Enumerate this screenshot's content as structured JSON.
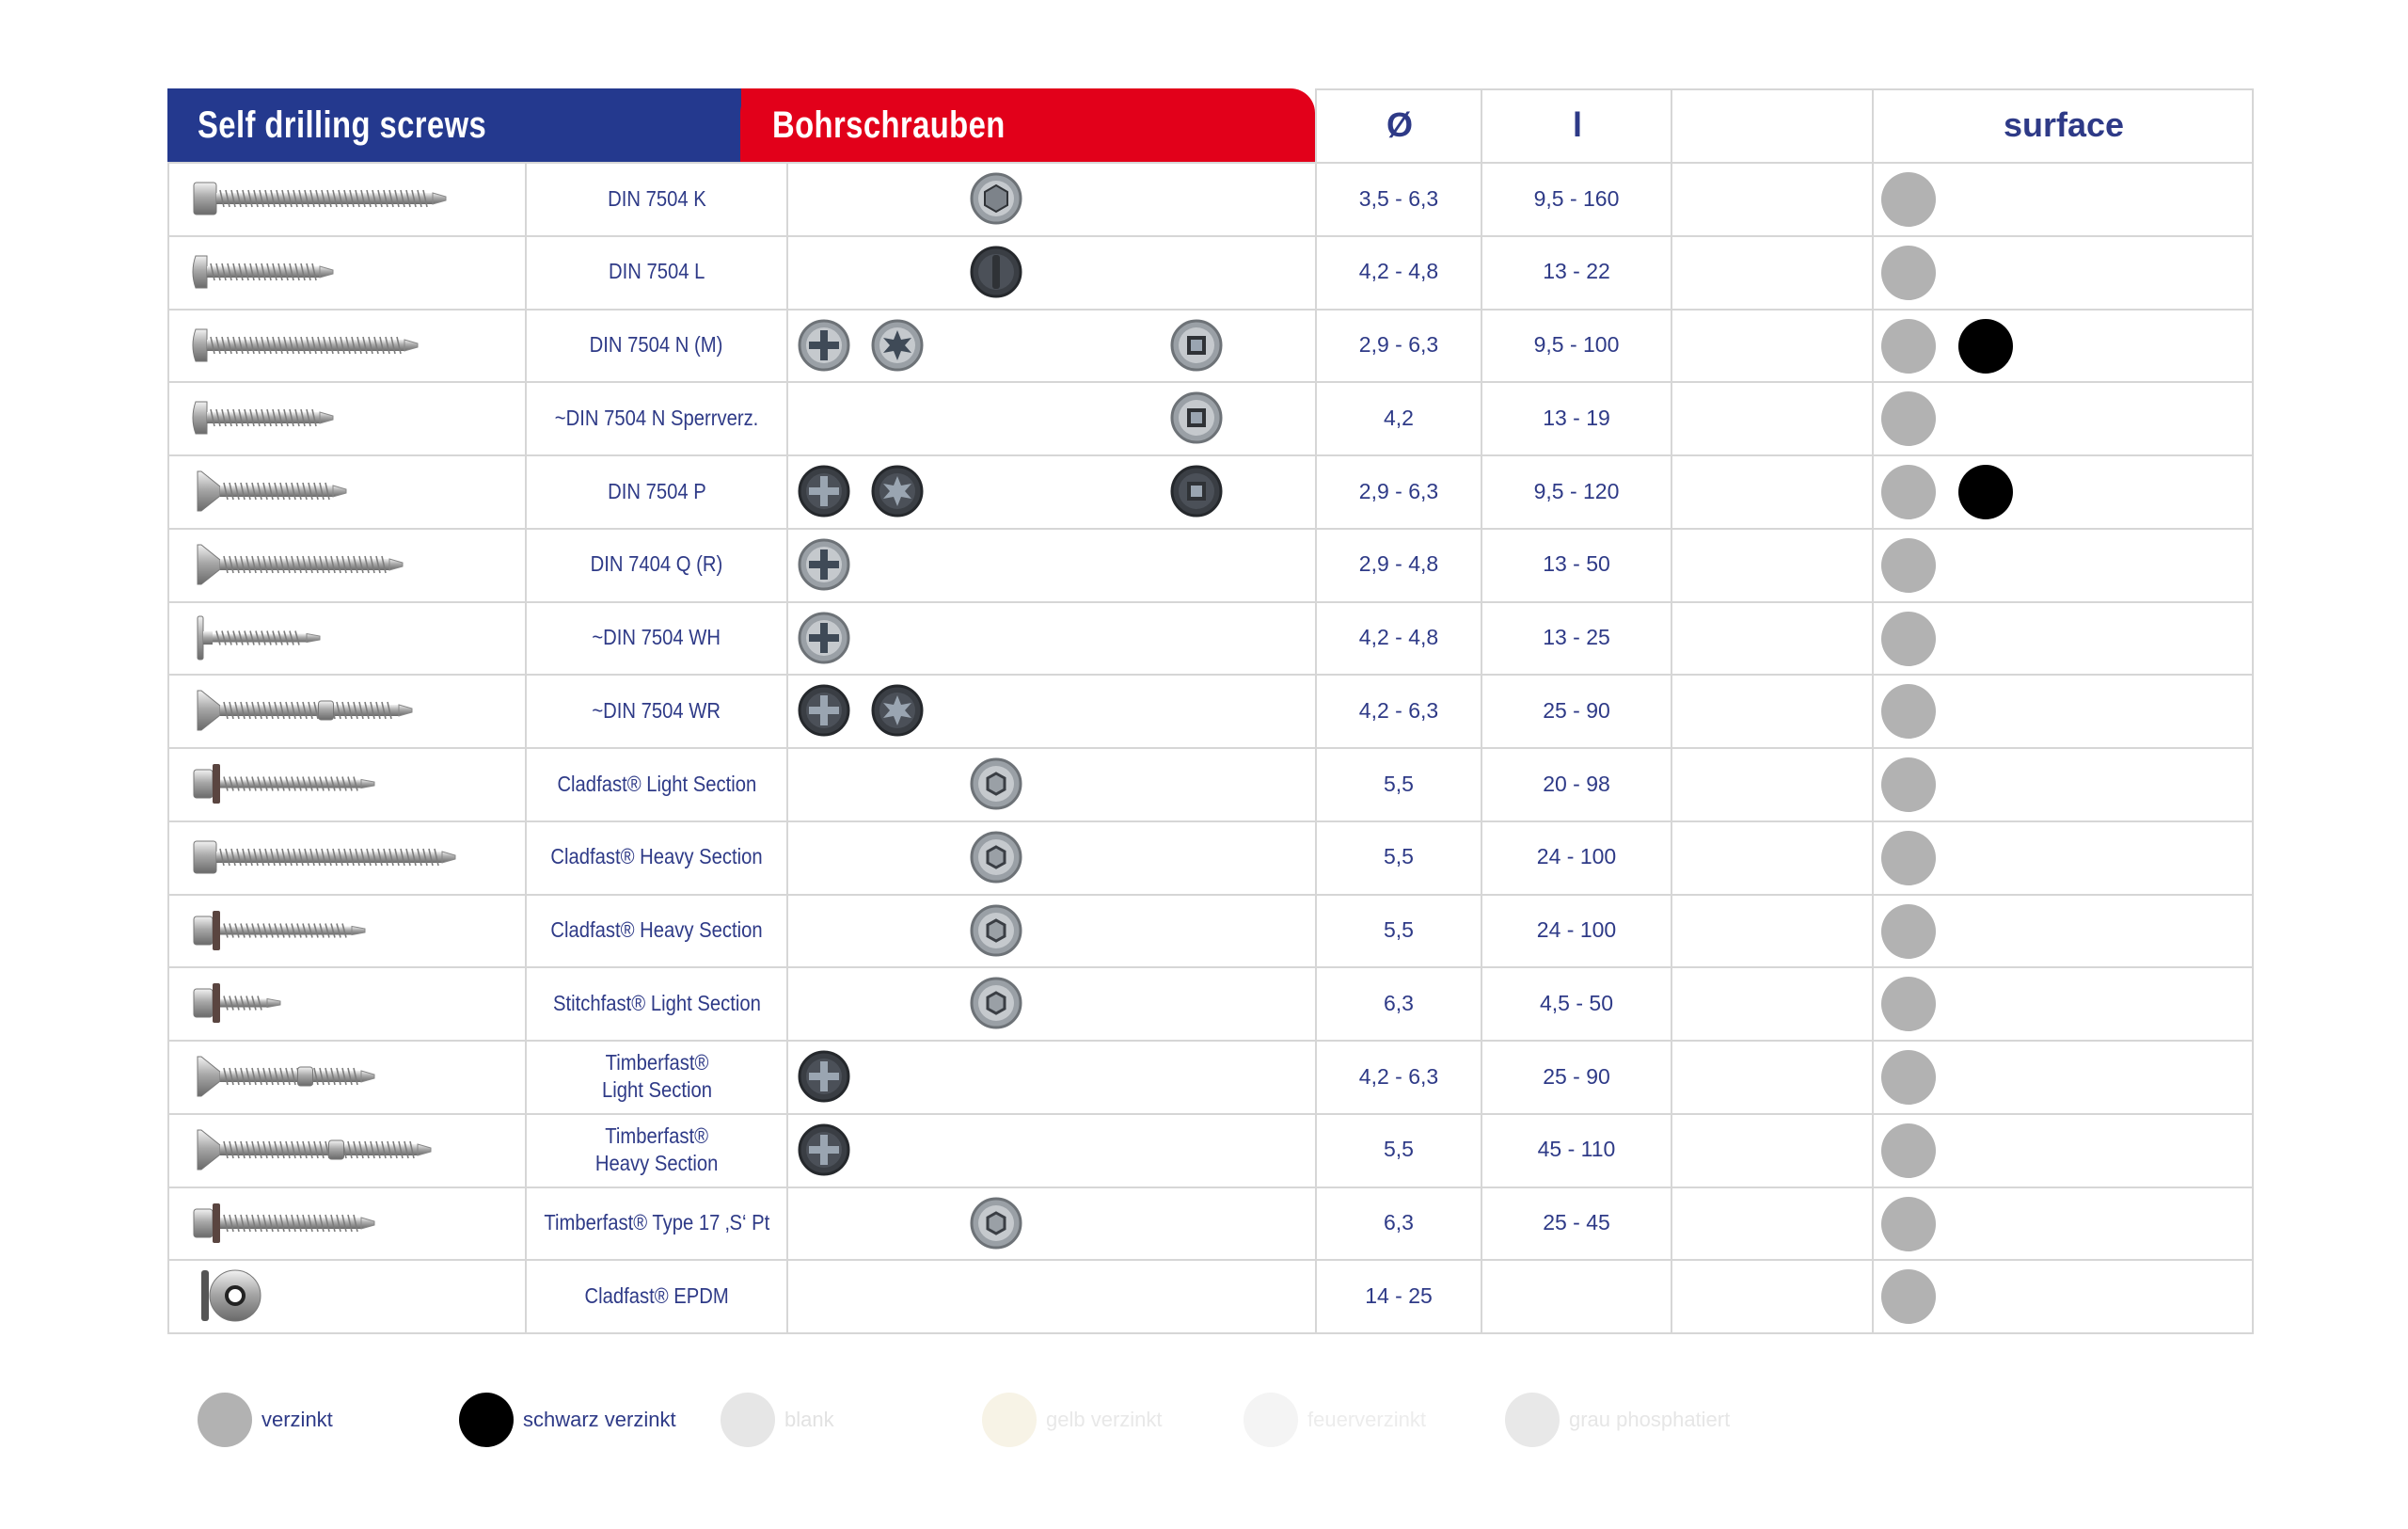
{
  "header": {
    "title_en": "Self drilling screws",
    "title_de": "Bohrschrauben",
    "col_diameter": "Ø",
    "col_length": "l",
    "col_surface": "surface"
  },
  "colors": {
    "header_blue": "#24398e",
    "header_red": "#e2001a",
    "text_blue": "#2e3a87",
    "verzinkt": "#b2b2b2",
    "schwarz_verzinkt": "#000000"
  },
  "rows": [
    {
      "name": "DIN 7504 K",
      "diameter": "3,5 - 6,3",
      "length": "9,5 - 160"
    },
    {
      "name": "DIN 7504 L",
      "diameter": "4,2 - 4,8",
      "length": "13 - 22"
    },
    {
      "name": "DIN 7504 N (M)",
      "diameter": "2,9 - 6,3",
      "length": "9,5 - 100"
    },
    {
      "name": "~DIN 7504 N Sperrverz.",
      "diameter": "4,2",
      "length": "13 - 19"
    },
    {
      "name": "DIN 7504 P",
      "diameter": "2,9 - 6,3",
      "length": "9,5 - 120"
    },
    {
      "name": "DIN 7404 Q (R)",
      "diameter": "2,9 - 4,8",
      "length": "13 - 50"
    },
    {
      "name": "~DIN 7504 WH",
      "diameter": "4,2 - 4,8",
      "length": "13 - 25"
    },
    {
      "name": "~DIN 7504 WR",
      "diameter": "4,2 - 6,3",
      "length": "25 - 90"
    },
    {
      "name": "Cladfast® Light Section",
      "diameter": "5,5",
      "length": "20 - 98"
    },
    {
      "name": "Cladfast® Heavy Section",
      "diameter": "5,5",
      "length": "24 - 100"
    },
    {
      "name": "Cladfast® Heavy Section",
      "diameter": "5,5",
      "length": "24 - 100"
    },
    {
      "name": "Stitchfast® Light Section",
      "diameter": "6,3",
      "length": "4,5 - 50"
    },
    {
      "name": "Timberfast®",
      "name2": "Light Section",
      "diameter": "4,2 - 6,3",
      "length": "25 - 90"
    },
    {
      "name": "Timberfast®",
      "name2": "Heavy Section",
      "diameter": "5,5",
      "length": "45 - 110"
    },
    {
      "name": "Timberfast® Type 17 ‚S‘ Pt",
      "diameter": "6,3",
      "length": "25 - 45"
    },
    {
      "name": "Cladfast® EPDM",
      "diameter": "14 - 25",
      "length": ""
    }
  ],
  "legend": [
    {
      "label": "verzinkt",
      "color": "#b2b2b2",
      "text_color": "#2e3a87"
    },
    {
      "label": "schwarz verzinkt",
      "color": "#000000",
      "text_color": "#2e3a87"
    },
    {
      "label": "blank",
      "color": "#e6e6e6",
      "text_color": "#e2e2e2"
    },
    {
      "label": "gelb verzinkt",
      "color": "#f7f3e6",
      "text_color": "#e8e8e8"
    },
    {
      "label": "feuerverzinkt",
      "color": "#f4f4f4",
      "text_color": "#ececec"
    },
    {
      "label": "grau phosphatiert",
      "color": "#e8e8e8",
      "text_color": "#e6e6e6"
    }
  ]
}
